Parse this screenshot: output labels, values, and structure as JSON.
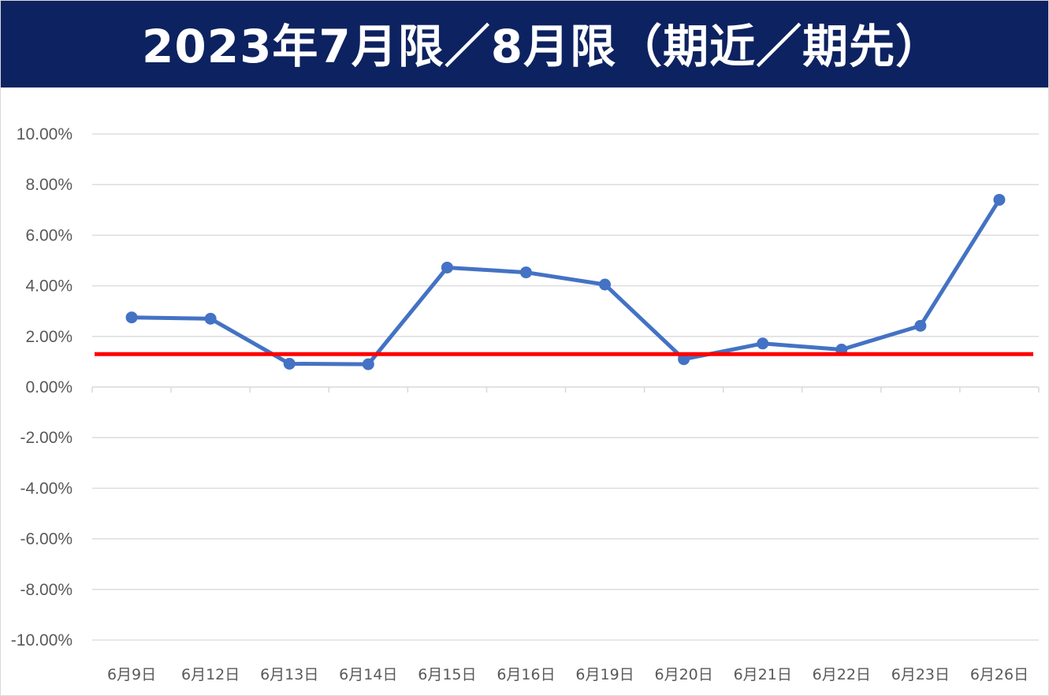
{
  "chart_data": {
    "type": "line",
    "title": "2023年7月限／8月限（期近／期先）",
    "categories": [
      "6月9日",
      "6月12日",
      "6月13日",
      "6月14日",
      "6月15日",
      "6月16日",
      "6月19日",
      "6月20日",
      "6月21日",
      "6月22日",
      "6月23日",
      "6月26日"
    ],
    "series": [
      {
        "color": "#4472c4",
        "values": [
          2.75,
          2.7,
          0.92,
          0.9,
          4.72,
          4.53,
          4.05,
          1.1,
          1.72,
          1.48,
          2.42,
          7.4
        ]
      }
    ],
    "reference_line": {
      "value": 1.3,
      "color": "#ff0000"
    },
    "ylim": [
      -10,
      10
    ],
    "yticks": [
      "10.00%",
      "8.00%",
      "6.00%",
      "4.00%",
      "2.00%",
      "0.00%",
      "-2.00%",
      "-4.00%",
      "-6.00%",
      "-8.00%",
      "-10.00%"
    ],
    "ytick_values": [
      10,
      8,
      6,
      4,
      2,
      0,
      -2,
      -4,
      -6,
      -8,
      -10
    ],
    "grid": true,
    "colors": {
      "title_bg": "#0d2260",
      "title_text": "#ffffff",
      "gridline": "#d9d9d9",
      "axis_text": "#595959"
    }
  }
}
